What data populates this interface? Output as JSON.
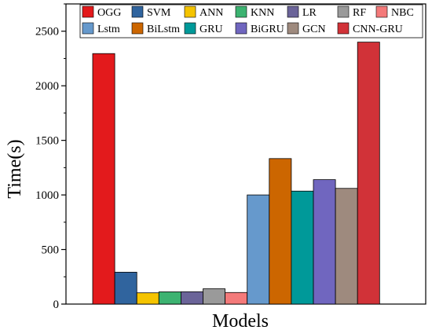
{
  "chart_data": {
    "type": "bar",
    "xlabel": "Models",
    "ylabel": "Time(s)",
    "ylim": [
      0,
      2750
    ],
    "yticks": [
      0,
      500,
      1000,
      1500,
      2000,
      2500
    ],
    "grid": false,
    "legend_position": "top",
    "series": [
      {
        "name": "OGG",
        "value": 2295,
        "color": "#e31a1c"
      },
      {
        "name": "SVM",
        "value": 292,
        "color": "#30649e"
      },
      {
        "name": "ANN",
        "value": 103,
        "color": "#f5c400"
      },
      {
        "name": "KNN",
        "value": 112,
        "color": "#3cb371"
      },
      {
        "name": "LR",
        "value": 113,
        "color": "#6b6499"
      },
      {
        "name": "RF",
        "value": 140,
        "color": "#9a9a9a"
      },
      {
        "name": "NBC",
        "value": 106,
        "color": "#f47a7a"
      },
      {
        "name": "Lstm",
        "value": 1000,
        "color": "#6699cc"
      },
      {
        "name": "BiLstm",
        "value": 1333,
        "color": "#cc6600"
      },
      {
        "name": "GRU",
        "value": 1035,
        "color": "#009999"
      },
      {
        "name": "BiGRU",
        "value": 1140,
        "color": "#7066bf"
      },
      {
        "name": "GCN",
        "value": 1060,
        "color": "#9e8a7e"
      },
      {
        "name": "CNN-GRU",
        "value": 2400,
        "color": "#d13238"
      }
    ]
  }
}
